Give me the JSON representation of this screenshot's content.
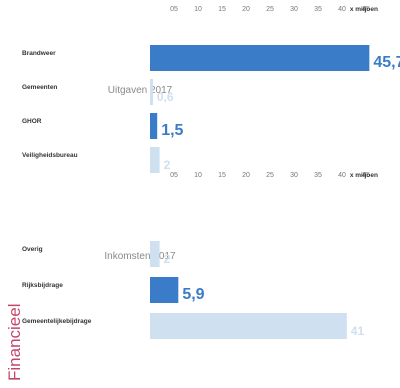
{
  "section_title": "Financieel",
  "chart_data": [
    {
      "type": "bar",
      "title": "Inkomsten 2017",
      "unit_label": "x miljoen",
      "categories": [
        "Gemeentelijkebijdrage",
        "Rijksbijdrage",
        "Overig"
      ],
      "values": [
        41,
        5.9,
        2
      ],
      "value_labels": [
        "41",
        "5,9",
        "2"
      ],
      "highlight": [
        false,
        true,
        false
      ],
      "ticks": [
        "05",
        "10",
        "15",
        "20",
        "25",
        "30",
        "35",
        "40",
        "45"
      ],
      "xlim": [
        0,
        45
      ]
    },
    {
      "type": "bar",
      "title": "Uitgaven 2017",
      "unit_label": "x miljoen",
      "categories": [
        "Veiligheidsbureau",
        "GHOR",
        "Gemeenten",
        "Brandweer"
      ],
      "values": [
        2,
        1.5,
        0.6,
        45.7
      ],
      "value_labels": [
        "2",
        "1,5",
        "0,6",
        "45,7"
      ],
      "highlight": [
        false,
        true,
        false,
        true
      ],
      "ticks": [
        "05",
        "10",
        "15",
        "20",
        "25",
        "30",
        "35",
        "40",
        "45"
      ],
      "xlim": [
        0,
        45
      ]
    }
  ],
  "colors": {
    "highlight": "#3a7cc8",
    "muted": "#cfe0f1",
    "title_accent": "#c2466a",
    "subtitle": "#8a8a8a",
    "axis": "#777777"
  }
}
